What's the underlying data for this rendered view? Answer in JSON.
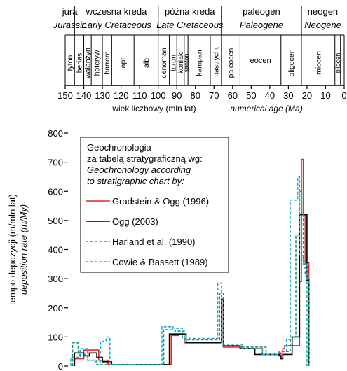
{
  "chart_data": {
    "type": "line",
    "x_axis": {
      "label_pl": "wiek liczbowy (mln lat)",
      "label_en": "numerical age (Ma)",
      "range": [
        150,
        0
      ],
      "ticks": [
        150,
        140,
        130,
        120,
        110,
        100,
        90,
        80,
        70,
        60,
        50,
        40,
        30,
        20,
        10,
        0
      ]
    },
    "y_axis": {
      "label_pl": "tempo depozycji (m/mln lat)",
      "label_en": "deposition rate (m/My)",
      "range": [
        0,
        800
      ],
      "ticks": [
        0,
        100,
        200,
        300,
        400,
        500,
        600,
        700,
        800
      ]
    },
    "periods": [
      {
        "pl": "jura",
        "en": "Jurassic",
        "from": 150,
        "to": 145
      },
      {
        "pl": "wczesna kreda",
        "en": "Early Cretaceous",
        "from": 145,
        "to": 100
      },
      {
        "pl": "późna kreda",
        "en": "Late Cretaceous",
        "from": 100,
        "to": 66
      },
      {
        "pl": "paleogen",
        "en": "Paleogene",
        "from": 66,
        "to": 23
      },
      {
        "pl": "neogen",
        "en": "Neogene",
        "from": 23,
        "to": 0
      }
    ],
    "stages": [
      {
        "name": "tyton",
        "from": 150,
        "to": 145
      },
      {
        "name": "berias",
        "from": 145,
        "to": 140
      },
      {
        "name": "walanżyn",
        "from": 140,
        "to": 136
      },
      {
        "name": "hoteryw",
        "from": 136,
        "to": 130
      },
      {
        "name": "barrem",
        "from": 130,
        "to": 125
      },
      {
        "name": "apt",
        "from": 125,
        "to": 113
      },
      {
        "name": "alb",
        "from": 113,
        "to": 100
      },
      {
        "name": "cenoman",
        "from": 100,
        "to": 94
      },
      {
        "name": "turon",
        "from": 94,
        "to": 90
      },
      {
        "name": "koniak",
        "from": 90,
        "to": 86
      },
      {
        "name": "santon",
        "from": 86,
        "to": 84
      },
      {
        "name": "kampan",
        "from": 84,
        "to": 72
      },
      {
        "name": "mastrycht",
        "from": 72,
        "to": 66
      },
      {
        "name": "paleocen",
        "from": 66,
        "to": 56
      },
      {
        "name": "eocen",
        "from": 56,
        "to": 34
      },
      {
        "name": "oligocen",
        "from": 34,
        "to": 23
      },
      {
        "name": "miocen",
        "from": 23,
        "to": 5
      },
      {
        "name": "pliocen",
        "from": 5,
        "to": 2
      }
    ],
    "legend": {
      "title_pl_1": "Geochronologia",
      "title_pl_2": "za tabelą stratygraficzną wg:",
      "title_en_1": "Geochronology according",
      "title_en_2": "to stratigraphic chart by:",
      "placement": "top-left"
    },
    "series": [
      {
        "name": "Gradstein & Ogg (1996)",
        "color": "#e0282d",
        "dash": "solid",
        "x": [
          145,
          145,
          140,
          140,
          132,
          132,
          127,
          127,
          100,
          100,
          93,
          93,
          89,
          89,
          86,
          86,
          71,
          71,
          66,
          66,
          65,
          65,
          55,
          55,
          44,
          44,
          35,
          35,
          34,
          34,
          33,
          33,
          32,
          32,
          24,
          24,
          23,
          23,
          22,
          22,
          21,
          21,
          19,
          19
        ],
        "y": [
          0,
          25,
          25,
          55,
          55,
          20,
          20,
          5,
          5,
          5,
          5,
          105,
          105,
          110,
          110,
          80,
          80,
          80,
          80,
          205,
          205,
          65,
          65,
          60,
          60,
          40,
          40,
          45,
          45,
          35,
          35,
          60,
          60,
          70,
          70,
          290,
          290,
          710,
          710,
          520,
          520,
          355,
          355,
          0
        ]
      },
      {
        "name": "Ogg (2003)",
        "color": "#000000",
        "dash": "solid",
        "x": [
          145,
          145,
          140,
          140,
          137,
          137,
          133,
          133,
          130,
          130,
          125,
          125,
          100,
          100,
          94,
          94,
          89,
          89,
          85,
          85,
          70,
          70,
          66,
          66,
          65,
          65,
          56,
          56,
          48,
          48,
          35,
          35,
          34,
          34,
          33,
          33,
          28,
          28,
          24,
          24,
          20,
          20,
          19,
          19
        ],
        "y": [
          0,
          45,
          45,
          35,
          35,
          45,
          45,
          30,
          30,
          15,
          15,
          5,
          5,
          5,
          5,
          110,
          110,
          110,
          110,
          80,
          80,
          80,
          80,
          230,
          230,
          70,
          70,
          60,
          60,
          40,
          40,
          35,
          35,
          25,
          25,
          40,
          40,
          100,
          100,
          520,
          520,
          295,
          295,
          0
        ]
      },
      {
        "name": "Harland et al. (1990)",
        "color": "#1a9a6a",
        "dash": "dashed",
        "x": [
          146,
          146,
          143,
          143,
          138,
          138,
          133,
          133,
          125,
          125,
          97,
          97,
          91,
          91,
          86,
          86,
          70,
          70,
          67,
          67,
          65,
          65,
          56,
          56,
          42,
          42,
          35,
          35,
          29,
          29,
          26,
          26,
          24,
          24,
          22,
          22,
          21,
          21,
          19,
          19
        ],
        "y": [
          0,
          80,
          80,
          40,
          40,
          20,
          20,
          5,
          5,
          5,
          5,
          125,
          125,
          120,
          120,
          90,
          90,
          90,
          90,
          250,
          250,
          70,
          70,
          65,
          65,
          40,
          40,
          50,
          50,
          100,
          100,
          450,
          450,
          600,
          600,
          360,
          360,
          310,
          310,
          0
        ]
      },
      {
        "name": "Cowie & Bassett (1989)",
        "color": "#21a8d0",
        "dash": "dashed",
        "x": [
          147,
          147,
          142,
          142,
          138,
          138,
          134,
          134,
          131,
          131,
          128,
          128,
          126,
          126,
          98,
          98,
          92,
          92,
          87,
          87,
          70,
          70,
          68,
          68,
          66,
          66,
          55,
          55,
          44,
          44,
          35,
          35,
          31,
          31,
          29,
          29,
          25,
          25,
          24,
          24,
          22,
          22,
          20,
          20
        ],
        "y": [
          0,
          30,
          30,
          60,
          60,
          20,
          20,
          15,
          15,
          85,
          85,
          100,
          100,
          5,
          5,
          135,
          135,
          130,
          130,
          95,
          95,
          95,
          95,
          285,
          285,
          75,
          75,
          60,
          60,
          40,
          40,
          50,
          50,
          90,
          90,
          570,
          570,
          650,
          650,
          380,
          380,
          350,
          350,
          0
        ]
      }
    ]
  }
}
